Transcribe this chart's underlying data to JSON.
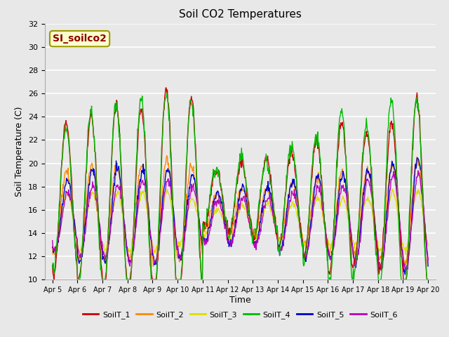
{
  "title": "Soil CO2 Temperatures",
  "xlabel": "Time",
  "ylabel": "Soil Temperature (C)",
  "ylim": [
    10,
    32
  ],
  "annotation": "SI_soilco2",
  "fig_bg": "#e8e8e8",
  "plot_bg": "#e8e8e8",
  "grid_color": "#ffffff",
  "series_colors": [
    "#cc0000",
    "#ff8800",
    "#dddd00",
    "#00bb00",
    "#0000cc",
    "#bb00bb"
  ],
  "series_labels": [
    "SoilT_1",
    "SoilT_2",
    "SoilT_3",
    "SoilT_4",
    "SoilT_5",
    "SoilT_6"
  ],
  "xtick_labels": [
    "Apr 5",
    "Apr 6",
    "Apr 7",
    "Apr 8",
    "Apr 9",
    "Apr 10",
    "Apr 11",
    "Apr 12",
    "Apr 13",
    "Apr 14",
    "Apr 15",
    "Apr 16",
    "Apr 17",
    "Apr 18",
    "Apr 19",
    "Apr 20"
  ],
  "yticks": [
    10,
    12,
    14,
    16,
    18,
    20,
    22,
    24,
    26,
    28,
    30,
    32
  ],
  "lw": 1.0
}
